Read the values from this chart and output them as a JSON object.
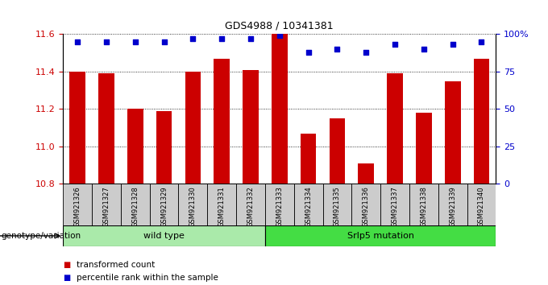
{
  "title": "GDS4988 / 10341381",
  "samples": [
    "GSM921326",
    "GSM921327",
    "GSM921328",
    "GSM921329",
    "GSM921330",
    "GSM921331",
    "GSM921332",
    "GSM921333",
    "GSM921334",
    "GSM921335",
    "GSM921336",
    "GSM921337",
    "GSM921338",
    "GSM921339",
    "GSM921340"
  ],
  "transformed_count": [
    11.4,
    11.39,
    11.2,
    11.19,
    11.4,
    11.47,
    11.41,
    11.6,
    11.07,
    11.15,
    10.91,
    11.39,
    11.18,
    11.35,
    11.47
  ],
  "percentile_rank": [
    95,
    95,
    95,
    95,
    97,
    97,
    97,
    99,
    88,
    90,
    88,
    93,
    90,
    93,
    95
  ],
  "groups": [
    {
      "label": "wild type",
      "start": 0,
      "end": 6,
      "color": "#AAEAAA"
    },
    {
      "label": "Srlp5 mutation",
      "start": 7,
      "end": 14,
      "color": "#44DD44"
    }
  ],
  "ylim_left": [
    10.8,
    11.6
  ],
  "ylim_right": [
    0,
    100
  ],
  "yticks_left": [
    10.8,
    11.0,
    11.2,
    11.4,
    11.6
  ],
  "yticks_right": [
    0,
    25,
    50,
    75,
    100
  ],
  "bar_color": "#CC0000",
  "dot_color": "#0000CC",
  "bar_bottom": 10.8,
  "legend_items": [
    {
      "label": "transformed count",
      "color": "#CC0000"
    },
    {
      "label": "percentile rank within the sample",
      "color": "#0000CC"
    }
  ],
  "genotype_label": "genotype/variation"
}
